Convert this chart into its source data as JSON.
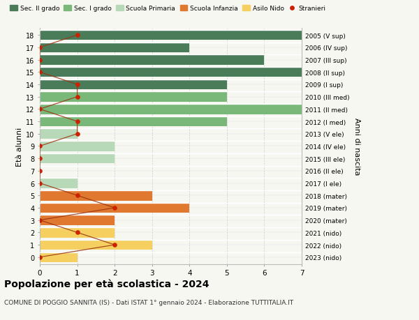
{
  "ages": [
    18,
    17,
    16,
    15,
    14,
    13,
    12,
    11,
    10,
    9,
    8,
    7,
    6,
    5,
    4,
    3,
    2,
    1,
    0
  ],
  "right_labels": [
    "2005 (V sup)",
    "2006 (IV sup)",
    "2007 (III sup)",
    "2008 (II sup)",
    "2009 (I sup)",
    "2010 (III med)",
    "2011 (II med)",
    "2012 (I med)",
    "2013 (V ele)",
    "2014 (IV ele)",
    "2015 (III ele)",
    "2016 (II ele)",
    "2017 (I ele)",
    "2018 (mater)",
    "2019 (mater)",
    "2020 (mater)",
    "2021 (nido)",
    "2022 (nido)",
    "2023 (nido)"
  ],
  "bar_values": [
    7,
    4,
    6,
    7,
    5,
    5,
    7,
    5,
    1,
    2,
    2,
    0,
    1,
    3,
    4,
    2,
    2,
    3,
    1
  ],
  "bar_colors": [
    "#4a7c59",
    "#4a7c59",
    "#4a7c59",
    "#4a7c59",
    "#4a7c59",
    "#7ab87a",
    "#7ab87a",
    "#7ab87a",
    "#b8d9b8",
    "#b8d9b8",
    "#b8d9b8",
    "#b8d9b8",
    "#b8d9b8",
    "#e07830",
    "#e07830",
    "#e07830",
    "#f5d060",
    "#f5d060",
    "#f5d060"
  ],
  "stranieri_x": [
    1,
    0,
    0,
    0,
    1,
    1,
    0,
    1,
    1,
    0,
    0,
    0,
    0,
    1,
    2,
    0,
    1,
    2,
    0
  ],
  "legend_labels": [
    "Sec. II grado",
    "Sec. I grado",
    "Scuola Primaria",
    "Scuola Infanzia",
    "Asilo Nido",
    "Stranieri"
  ],
  "legend_colors": [
    "#4a7c59",
    "#7ab87a",
    "#b8d9b8",
    "#e07830",
    "#f5d060",
    "#cc2200"
  ],
  "title": "Popolazione per età scolastica - 2024",
  "subtitle": "COMUNE DI POGGIO SANNITA (IS) - Dati ISTAT 1° gennaio 2024 - Elaborazione TUTTITALIA.IT",
  "ylabel_left": "Età alunni",
  "ylabel_right": "Anni di nascita",
  "xlim": [
    0,
    7
  ],
  "background_color": "#f7f7f2",
  "stranieri_color": "#cc2200",
  "stranieri_line_color": "#993311"
}
